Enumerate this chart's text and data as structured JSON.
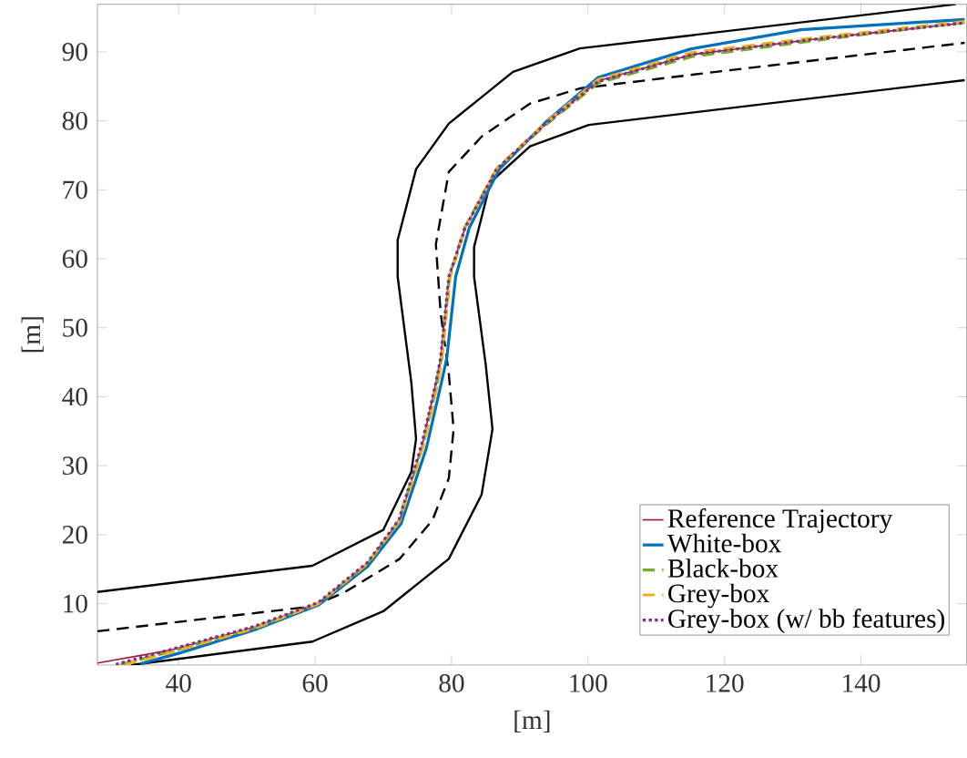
{
  "chart_data": {
    "type": "line",
    "xlabel": "[m]",
    "ylabel": "[m]",
    "xlim": [
      28.1,
      155.5
    ],
    "ylim": [
      1.1,
      96.9
    ],
    "xticks": [
      40,
      60,
      80,
      100,
      120,
      140
    ],
    "yticks": [
      10,
      20,
      30,
      40,
      50,
      60,
      70,
      80,
      90
    ],
    "grid": false,
    "legend": "bottom right",
    "series": [
      {
        "color": "#000000",
        "line_style": "solid",
        "x": [
          28.1,
          59.6,
          70,
          74.1,
          74.8,
          74.1,
          72.1,
          72.1,
          74.8,
          79.6,
          89,
          98.8,
          153.9
        ],
        "values": [
          11.7,
          15.5,
          20.7,
          29.1,
          33.9,
          42.1,
          57.4,
          62.7,
          73,
          79.6,
          87.1,
          90.5,
          96.9
        ]
      },
      {
        "color": "#000000",
        "line_style": "solid",
        "x": [
          33.0,
          59.6,
          70,
          79.6,
          84.4,
          86,
          85,
          83.3,
          83.3,
          85.7,
          91.5,
          100.1,
          155.2
        ],
        "values": [
          1.1,
          4.5,
          8.9,
          16.5,
          25.8,
          35.3,
          44.7,
          57.4,
          61.7,
          71.1,
          76.3,
          79.4,
          85.9
        ]
      },
      {
        "color": "#000000",
        "line_style": "dashed",
        "x": [
          28.1,
          59.6,
          64.4,
          72.4,
          77.2,
          79.6,
          80.3,
          79.6,
          78.4,
          77.7,
          79.6,
          84.4,
          91.5,
          98.8,
          119.6,
          155.2
        ],
        "values": [
          6.0,
          9.6,
          11.7,
          16.5,
          22.1,
          28.2,
          35.3,
          43.3,
          52.2,
          62.1,
          72.6,
          77.7,
          82.5,
          84.7,
          87.2,
          91.3
        ]
      },
      {
        "name": "Reference Trajectory",
        "color": "#a2142f",
        "line_style": "solid",
        "x": [
          28.1,
          39,
          51.1,
          60.5,
          67.7,
          72.4,
          75.7,
          77.7,
          78.4,
          79.6,
          82,
          86.7,
          93.9,
          101.5,
          115.2,
          132.9,
          155.2
        ],
        "values": [
          1.4,
          3.3,
          6.6,
          10.1,
          15.9,
          22.1,
          33.0,
          42.0,
          45.6,
          57.4,
          64.5,
          73,
          79.6,
          85.8,
          89.6,
          91.8,
          94.2
        ]
      },
      {
        "name": "White-box",
        "color": "#0072bd",
        "line_style": "solid",
        "x": [
          34.4,
          40,
          51.1,
          60.5,
          67.7,
          72.6,
          76.3,
          78.5,
          79.3,
          80.6,
          82.6,
          87,
          94,
          101.5,
          115,
          131.2,
          155.2
        ],
        "values": [
          1.3,
          2.8,
          6.2,
          9.8,
          15.4,
          21.6,
          32.5,
          42.0,
          45.6,
          57.4,
          64.5,
          73,
          80,
          86.3,
          90.4,
          93.2,
          94.7
        ]
      },
      {
        "name": "Black-box",
        "color": "#77ac30",
        "line_style": "dashed",
        "x": [
          31.5,
          39,
          51.1,
          60.5,
          67.7,
          72.3,
          75.8,
          77.9,
          78.5,
          79.7,
          81.9,
          86.6,
          93.8,
          101.5,
          115.2,
          132.9,
          155.2
        ],
        "values": [
          1.2,
          3.1,
          6.5,
          10.0,
          15.8,
          22.1,
          33.0,
          42.0,
          45.6,
          57.4,
          64.5,
          73,
          79.4,
          85.5,
          89.3,
          91.6,
          94.3
        ]
      },
      {
        "name": "Grey-box",
        "color": "#edb120",
        "line_style": "dashed",
        "x": [
          32.2,
          39,
          51.1,
          60.5,
          67.7,
          72.4,
          75.9,
          78.0,
          78.6,
          79.8,
          82,
          86.7,
          93.9,
          101.5,
          115.2,
          132.9,
          155.2
        ],
        "values": [
          1.2,
          3.0,
          6.4,
          10.0,
          15.8,
          22.0,
          33.0,
          42.0,
          45.6,
          57.4,
          64.5,
          73.2,
          79.8,
          86.0,
          89.9,
          92.0,
          94.4
        ]
      },
      {
        "name": "Grey-box (w/ bb features)",
        "color": "#7e2f8e",
        "line_style": "dotted",
        "x": [
          30.8,
          39,
          51.1,
          60.5,
          67.7,
          72.3,
          75.6,
          77.7,
          78.4,
          79.6,
          82,
          86.6,
          93.8,
          101.5,
          115.2,
          132.9,
          155.2
        ],
        "values": [
          1.2,
          3.4,
          6.7,
          10.2,
          16.0,
          22.2,
          33.0,
          42.0,
          45.6,
          57.4,
          64.5,
          73,
          79.6,
          85.7,
          89.6,
          91.8,
          94.2
        ]
      }
    ]
  }
}
